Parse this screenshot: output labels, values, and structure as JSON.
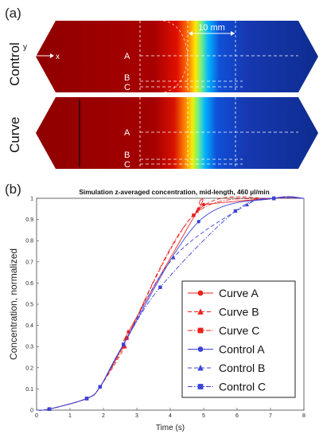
{
  "panel_a": {
    "label": "(a)",
    "scale_label": "10 mm",
    "axis_y": "y",
    "axis_x": "x",
    "rows": [
      {
        "name": "Control",
        "lines": [
          "A",
          "B",
          "C"
        ]
      },
      {
        "name": "Curve",
        "lines": [
          "A",
          "B",
          "C"
        ]
      }
    ],
    "colors": {
      "high": "#990000",
      "low": "#0f2f9a"
    }
  },
  "panel_b": {
    "label": "(b)"
  },
  "chart_data": {
    "type": "line",
    "title": "Simulation z-averaged concentration, mid-length, 460 µl/min",
    "xlabel": "Time (s)",
    "ylabel": "Concentration, normalized",
    "xlim": [
      0,
      8
    ],
    "ylim": [
      0,
      1
    ],
    "xticks": [
      "0",
      "1",
      "2",
      "3",
      "4",
      "5",
      "6",
      "7",
      "8"
    ],
    "yticks": [
      "0",
      "0.1",
      "0.2",
      "0.3",
      "0.4",
      "0.5",
      "0.6",
      "0.7",
      "0.8",
      "0.9",
      "1"
    ],
    "grid": false,
    "legend_position": "bottom-right",
    "series": [
      {
        "name": "Curve A",
        "color": "#e8221e",
        "dash": "solid",
        "marker": "circle",
        "x": [
          0.38,
          1.5,
          1.9,
          2.7,
          2.75,
          4.85,
          5.0,
          7.1
        ],
        "y": [
          0.005,
          0.055,
          0.11,
          0.34,
          0.37,
          0.95,
          0.97,
          1.0
        ]
      },
      {
        "name": "Curve B",
        "color": "#e8221e",
        "dash": "dash",
        "marker": "triangle",
        "x": [
          0.38,
          1.5,
          1.9,
          2.65,
          2.7,
          4.8,
          7.1
        ],
        "y": [
          0.005,
          0.055,
          0.11,
          0.3,
          0.34,
          0.94,
          1.0
        ]
      },
      {
        "name": "Curve C",
        "color": "#e8221e",
        "dash": "dashdot",
        "marker": "square",
        "x": [
          0.38,
          1.5,
          1.9,
          2.6,
          2.7,
          4.7,
          7.1
        ],
        "y": [
          0.005,
          0.055,
          0.11,
          0.3,
          0.34,
          0.92,
          1.0
        ]
      },
      {
        "name": "Control A",
        "color": "#3a44d8",
        "dash": "solid",
        "marker": "circle",
        "x": [
          0.38,
          1.5,
          1.9,
          2.6,
          4.85,
          7.1
        ],
        "y": [
          0.005,
          0.055,
          0.11,
          0.31,
          0.89,
          1.0
        ]
      },
      {
        "name": "Control B",
        "color": "#3a44d8",
        "dash": "dash",
        "marker": "triangle",
        "x": [
          0.38,
          1.5,
          1.9,
          2.6,
          4.1,
          6.3,
          7.1
        ],
        "y": [
          0.005,
          0.055,
          0.11,
          0.31,
          0.72,
          0.97,
          1.0
        ]
      },
      {
        "name": "Control C",
        "color": "#3a44d8",
        "dash": "dashdot",
        "marker": "square",
        "x": [
          0.38,
          1.5,
          1.9,
          2.6,
          3.7,
          5.95,
          7.1
        ],
        "y": [
          0.005,
          0.055,
          0.11,
          0.31,
          0.58,
          0.94,
          1.0
        ]
      }
    ]
  }
}
